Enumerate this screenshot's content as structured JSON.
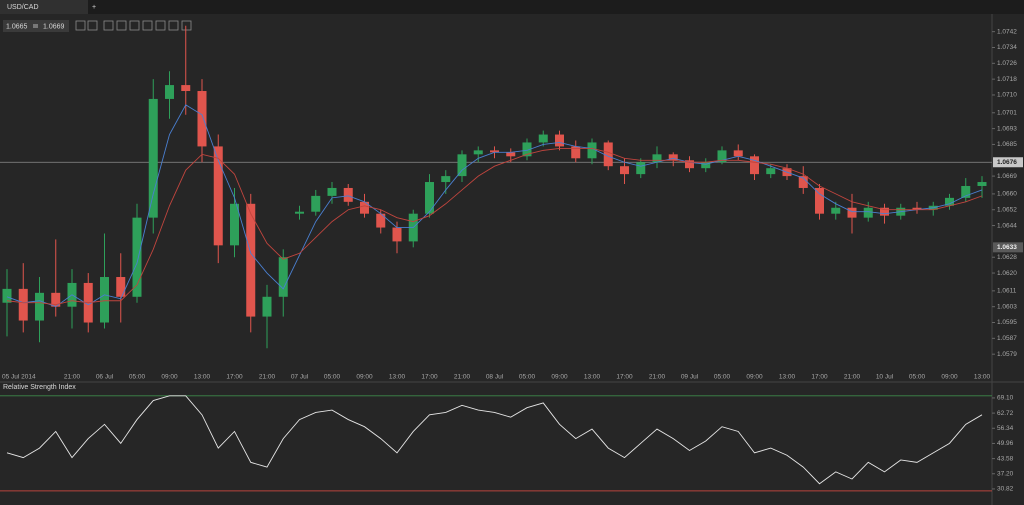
{
  "tab": "USD/CAD",
  "new_tab": "+",
  "quote": {
    "bid": 1.0665,
    "ask": 1.0669
  },
  "chart_data": [
    {
      "type": "candlestick",
      "categories": [
        "05 Jul 2014",
        null,
        null,
        null,
        "21:00",
        null,
        "06 Jul",
        null,
        "05:00",
        null,
        "09:00",
        null,
        "13:00",
        null,
        "17:00",
        null,
        "21:00",
        null,
        "07 Jul",
        null,
        "05:00",
        null,
        "09:00",
        null,
        "13:00",
        null,
        "17:00",
        null,
        "21:00",
        null,
        "08 Jul",
        null,
        "05:00",
        null,
        "09:00",
        null,
        "13:00",
        null,
        "17:00",
        null,
        "21:00",
        null,
        "09 Jul",
        null,
        "05:00",
        null,
        "09:00",
        null,
        "13:00",
        null,
        "17:00",
        null,
        "21:00",
        null,
        "10 Jul",
        null,
        "05:00",
        null,
        "09:00",
        null,
        "13:00"
      ],
      "open": [
        1.0605,
        1.0612,
        1.0596,
        1.061,
        1.0603,
        1.0615,
        1.0595,
        1.0618,
        1.0608,
        1.0648,
        1.0708,
        1.0715,
        1.0712,
        1.0684,
        1.0634,
        1.0655,
        1.0598,
        1.0608,
        1.065,
        1.0651,
        1.0659,
        1.0663,
        1.0656,
        1.065,
        1.0643,
        1.0636,
        1.065,
        1.0666,
        1.0669,
        1.068,
        1.0682,
        1.0681,
        1.0679,
        1.0686,
        1.069,
        1.0684,
        1.0678,
        1.0686,
        1.0674,
        1.067,
        1.0676,
        1.068,
        1.0677,
        1.0673,
        1.0676,
        1.0682,
        1.0679,
        1.067,
        1.0673,
        1.0669,
        1.0663,
        1.065,
        1.0653,
        1.0648,
        1.0653,
        1.0649,
        1.0653,
        1.0652,
        1.0654,
        1.0658,
        1.0664
      ],
      "high": [
        1.0622,
        1.0625,
        1.0618,
        1.0637,
        1.0622,
        1.062,
        1.064,
        1.063,
        1.0655,
        1.0718,
        1.0722,
        1.0745,
        1.0718,
        1.069,
        1.0663,
        1.066,
        1.0614,
        1.0632,
        1.0654,
        1.0662,
        1.0666,
        1.0665,
        1.066,
        1.0652,
        1.0646,
        1.0652,
        1.067,
        1.0672,
        1.0682,
        1.0684,
        1.0684,
        1.0683,
        1.0688,
        1.0692,
        1.0692,
        1.0687,
        1.0688,
        1.0687,
        1.0678,
        1.0678,
        1.0684,
        1.0681,
        1.0679,
        1.0678,
        1.0684,
        1.0685,
        1.068,
        1.0675,
        1.0675,
        1.0674,
        1.0665,
        1.0656,
        1.066,
        1.0656,
        1.0655,
        1.0655,
        1.0656,
        1.0656,
        1.066,
        1.0668,
        1.0669
      ],
      "low": [
        1.0588,
        1.059,
        1.0585,
        1.0598,
        1.0592,
        1.059,
        1.0592,
        1.0595,
        1.0605,
        1.064,
        1.0698,
        1.07,
        1.0676,
        1.0625,
        1.0628,
        1.059,
        1.0582,
        1.0598,
        1.0647,
        1.0649,
        1.0655,
        1.0654,
        1.0648,
        1.064,
        1.063,
        1.0633,
        1.0648,
        1.066,
        1.0666,
        1.0676,
        1.0678,
        1.0676,
        1.0677,
        1.0684,
        1.0682,
        1.0676,
        1.0675,
        1.0672,
        1.0665,
        1.0668,
        1.0673,
        1.0674,
        1.0671,
        1.0671,
        1.0675,
        1.0677,
        1.0667,
        1.0668,
        1.0667,
        1.066,
        1.0647,
        1.0647,
        1.064,
        1.0646,
        1.0645,
        1.0647,
        1.065,
        1.0649,
        1.0652,
        1.0656,
        1.0658
      ],
      "close": [
        1.0612,
        1.0596,
        1.061,
        1.0603,
        1.0615,
        1.0595,
        1.0618,
        1.0608,
        1.0648,
        1.0708,
        1.0715,
        1.0712,
        1.0684,
        1.0634,
        1.0655,
        1.0598,
        1.0608,
        1.0628,
        1.0651,
        1.0659,
        1.0663,
        1.0656,
        1.065,
        1.0643,
        1.0636,
        1.065,
        1.0666,
        1.0669,
        1.068,
        1.0682,
        1.0681,
        1.0679,
        1.0686,
        1.069,
        1.0684,
        1.0678,
        1.0686,
        1.0674,
        1.067,
        1.0676,
        1.068,
        1.0677,
        1.0673,
        1.0676,
        1.0682,
        1.0679,
        1.067,
        1.0673,
        1.0669,
        1.0663,
        1.065,
        1.0653,
        1.0648,
        1.0653,
        1.0649,
        1.0653,
        1.0652,
        1.0654,
        1.0658,
        1.0664,
        1.0666
      ],
      "up_color": "#2ea05a",
      "down_color": "#e0554d",
      "moving_averages": [
        {
          "color": "#4a7fd0",
          "values": [
            1.0608,
            1.0605,
            1.0606,
            1.0603,
            1.0609,
            1.0604,
            1.0609,
            1.0607,
            1.0625,
            1.066,
            1.069,
            1.0705,
            1.07,
            1.0677,
            1.0658,
            1.063,
            1.062,
            1.0612,
            1.0629,
            1.0646,
            1.0658,
            1.0659,
            1.0656,
            1.065,
            1.0643,
            1.0643,
            1.0651,
            1.0662,
            1.0672,
            1.0678,
            1.0681,
            1.0681,
            1.0682,
            1.0685,
            1.0686,
            1.0684,
            1.0683,
            1.0679,
            1.0676,
            1.0674,
            1.0676,
            1.0678,
            1.0676,
            1.0675,
            1.0677,
            1.0679,
            1.0677,
            1.0674,
            1.0671,
            1.0668,
            1.066,
            1.0655,
            1.0651,
            1.0651,
            1.065,
            1.0651,
            1.0652,
            1.0653,
            1.0655,
            1.0659,
            1.0662
          ]
        },
        {
          "color": "#c0453e",
          "values": [
            1.0606,
            1.0605,
            1.0605,
            1.0604,
            1.0606,
            1.0605,
            1.0606,
            1.0606,
            1.0614,
            1.0632,
            1.0654,
            1.0672,
            1.068,
            1.0678,
            1.067,
            1.065,
            1.0635,
            1.0627,
            1.063,
            1.0638,
            1.0646,
            1.0652,
            1.0654,
            1.0652,
            1.0648,
            1.0646,
            1.0649,
            1.0655,
            1.0662,
            1.0669,
            1.0674,
            1.0677,
            1.068,
            1.0682,
            1.0683,
            1.0683,
            1.0683,
            1.0681,
            1.0678,
            1.0677,
            1.0677,
            1.0677,
            1.0676,
            1.0676,
            1.0677,
            1.0677,
            1.0676,
            1.0675,
            1.0673,
            1.067,
            1.0664,
            1.066,
            1.0656,
            1.0654,
            1.0652,
            1.0652,
            1.0652,
            1.0652,
            1.0654,
            1.0656,
            1.0659
          ]
        }
      ],
      "price_line": 1.0676,
      "price_marker": 1.0633,
      "ylim": [
        1.0571,
        1.0758
      ],
      "yticks": [
        1.0742,
        1.0734,
        1.0726,
        1.0718,
        {
          "value": 1.071,
          "label": "1.0710"
        },
        1.0701,
        1.0693,
        1.0685,
        1.0669,
        {
          "value": 1.066,
          "label": "1.0660"
        },
        1.0652,
        1.0644,
        1.0628,
        {
          "value": 1.062,
          "label": "1.0620"
        },
        1.0611,
        1.0603,
        1.0595,
        1.0587,
        1.0579
      ]
    },
    {
      "type": "line",
      "title": "Relative Strength Index",
      "series": [
        {
          "color": "#e6e6e6",
          "values": [
            46,
            44,
            48,
            55,
            44,
            52,
            58,
            50,
            60,
            68,
            70,
            70,
            62,
            48,
            55,
            42,
            40,
            52,
            60,
            63,
            64,
            60,
            57,
            52,
            46,
            55,
            62,
            63,
            66,
            64,
            63,
            61,
            65,
            67,
            58,
            52,
            56,
            48,
            44,
            50,
            56,
            52,
            47,
            51,
            57,
            55,
            46,
            48,
            45,
            40,
            33,
            38,
            35,
            42,
            38,
            43,
            42,
            46,
            50,
            58,
            62
          ]
        }
      ],
      "levels": [
        {
          "value": 70,
          "color": "#3c8a4a"
        },
        {
          "value": 30,
          "color": "#b8443c"
        }
      ],
      "ylim": [
        24.9,
        71.6
      ],
      "yticks": [
        {
          "value": 69.1,
          "label": "69.10"
        },
        62.72,
        56.34,
        49.96,
        43.58,
        {
          "value": 37.2,
          "label": "37.20"
        },
        30.82
      ]
    }
  ]
}
